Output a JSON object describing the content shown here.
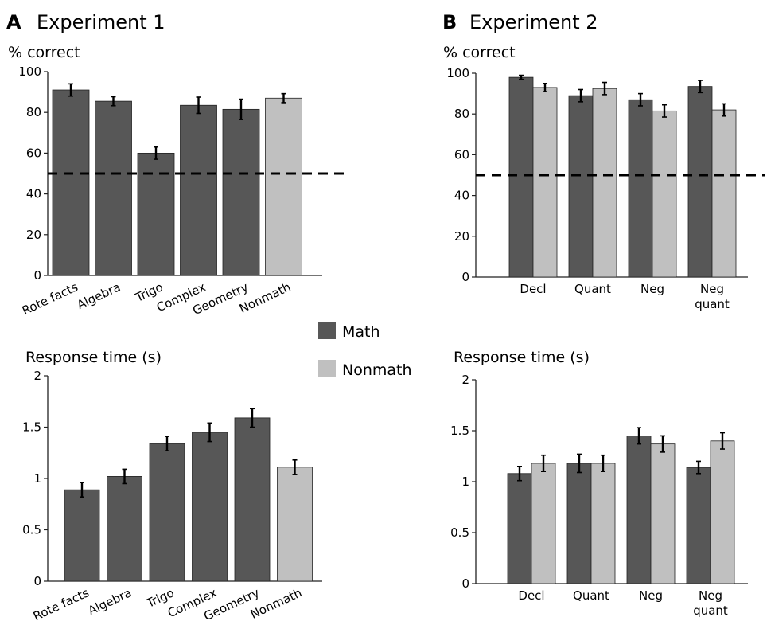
{
  "legend": {
    "items": [
      {
        "label": "Math",
        "color": "#575757"
      },
      {
        "label": "Nonmath",
        "color": "#c0c0c0"
      }
    ]
  },
  "panels": [
    {
      "letter": "A",
      "title": "Experiment 1"
    },
    {
      "letter": "B",
      "title": "Experiment 2"
    }
  ],
  "chart_data": [
    {
      "panel": "A",
      "type": "bar",
      "ylabel": "% correct",
      "ylim": [
        0,
        100
      ],
      "yticks": [
        0,
        20,
        40,
        60,
        80,
        100
      ],
      "chance_line": 50,
      "categories": [
        "Rote facts",
        "Algebra",
        "Trigo",
        "Complex",
        "Geometry",
        "Nonmath"
      ],
      "values": [
        91,
        85.5,
        60,
        83.5,
        81.5,
        87
      ],
      "errors": [
        3,
        2.2,
        3,
        4,
        5,
        2.2
      ],
      "series_of_each": [
        "Math",
        "Math",
        "Math",
        "Math",
        "Math",
        "Nonmath"
      ]
    },
    {
      "panel": "A",
      "type": "bar",
      "ylabel": "Response time (s)",
      "ylim": [
        0,
        2
      ],
      "yticks": [
        0,
        0.5,
        1,
        1.5,
        2
      ],
      "ytick_labels": [
        "0",
        "0.5",
        "1",
        "1.5",
        "2"
      ],
      "categories": [
        "Rote facts",
        "Algebra",
        "Trigo",
        "Complex",
        "Geometry",
        "Nonmath"
      ],
      "values": [
        0.89,
        1.02,
        1.34,
        1.45,
        1.59,
        1.11
      ],
      "errors": [
        0.07,
        0.07,
        0.07,
        0.09,
        0.09,
        0.07
      ],
      "series_of_each": [
        "Math",
        "Math",
        "Math",
        "Math",
        "Math",
        "Nonmath"
      ]
    },
    {
      "panel": "B",
      "type": "bar",
      "ylabel": "% correct",
      "ylim": [
        0,
        100
      ],
      "yticks": [
        0,
        20,
        40,
        60,
        80,
        100
      ],
      "chance_line": 50,
      "categories": [
        "Decl",
        "Quant",
        "Neg",
        "Neg\nquant"
      ],
      "series": [
        {
          "name": "Math",
          "values": [
            98,
            89,
            87,
            93.5
          ],
          "errors": [
            1,
            3,
            3,
            3
          ]
        },
        {
          "name": "Nonmath",
          "values": [
            93,
            92.5,
            81.5,
            82
          ],
          "errors": [
            2,
            3,
            3,
            3
          ]
        }
      ]
    },
    {
      "panel": "B",
      "type": "bar",
      "ylabel": "Response time (s)",
      "ylim": [
        0,
        2
      ],
      "yticks": [
        0,
        0.5,
        1,
        1.5,
        2
      ],
      "ytick_labels": [
        "0",
        "0.5",
        "1",
        "1.5",
        "2"
      ],
      "categories": [
        "Decl",
        "Quant",
        "Neg",
        "Neg\nquant"
      ],
      "series": [
        {
          "name": "Math",
          "values": [
            1.08,
            1.18,
            1.45,
            1.14
          ],
          "errors": [
            0.07,
            0.09,
            0.08,
            0.06
          ]
        },
        {
          "name": "Nonmath",
          "values": [
            1.18,
            1.18,
            1.37,
            1.4
          ],
          "errors": [
            0.08,
            0.08,
            0.08,
            0.08
          ]
        }
      ]
    }
  ]
}
